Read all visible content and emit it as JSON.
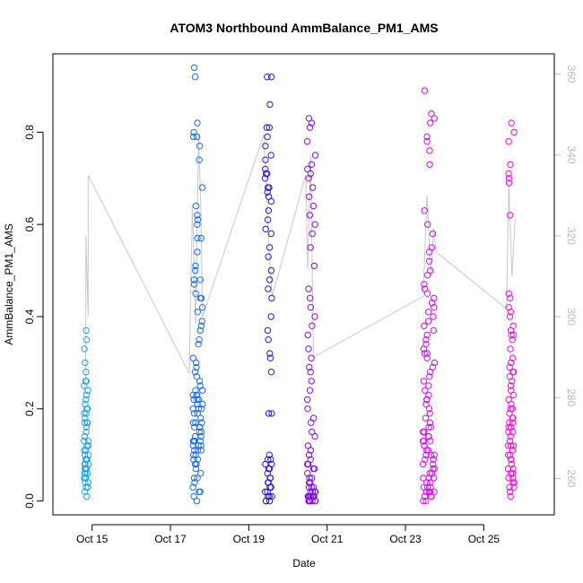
{
  "chart_data": {
    "type": "scatter",
    "title": "ATOM3 Northbound AmmBalance_PM1_AMS",
    "xlabel": "Date",
    "ylabel": "AmmBalance_PM1_AMS",
    "x_ticks": [
      "Oct 15",
      "Oct 17",
      "Oct 19",
      "Oct 21",
      "Oct 23",
      "Oct 25"
    ],
    "x_tick_days": [
      15,
      17,
      19,
      21,
      23,
      25
    ],
    "xlim_days": [
      14.0,
      26.8
    ],
    "y_ticks": [
      "0.0",
      "0.2",
      "0.4",
      "0.6",
      "0.8"
    ],
    "ylim": [
      -0.03,
      0.97
    ],
    "right_axis": {
      "ticks": [
        "260",
        "280",
        "300",
        "320",
        "340",
        "360"
      ],
      "ylim": [
        251,
        365
      ],
      "color": "#b8b8b8"
    },
    "grid": false,
    "point_style": "open circle",
    "point_colors": [
      "#1aa0f0",
      "#1a6cf0",
      "#3010e8",
      "#8010e8",
      "#d010ee",
      "#f010d8"
    ],
    "series": [
      {
        "clusters": [
          {
            "day": 14.85,
            "spread": 0.12,
            "color": "#1aa0f0",
            "values": [
              0.37,
              0.35,
              0.33,
              0.3,
              0.28,
              0.26,
              0.25,
              0.24,
              0.23,
              0.22,
              0.21,
              0.2,
              0.2,
              0.19,
              0.19,
              0.18,
              0.17,
              0.17,
              0.16,
              0.15,
              0.14,
              0.13,
              0.13,
              0.12,
              0.11,
              0.11,
              0.1,
              0.1,
              0.09,
              0.09,
              0.09,
              0.08,
              0.08,
              0.08,
              0.07,
              0.07,
              0.07,
              0.06,
              0.06,
              0.06,
              0.05,
              0.05,
              0.05,
              0.04,
              0.04,
              0.03,
              0.03,
              0.02,
              0.01,
              0.26,
              0.17,
              0.12
            ]
          },
          {
            "day": 17.7,
            "spread": 0.25,
            "color": "#1a6cf0",
            "values": [
              0.94,
              0.92,
              0.82,
              0.8,
              0.79,
              0.79,
              0.77,
              0.74,
              0.68,
              0.64,
              0.62,
              0.61,
              0.6,
              0.57,
              0.57,
              0.54,
              0.51,
              0.5,
              0.48,
              0.47,
              0.45,
              0.44,
              0.44,
              0.42,
              0.39,
              0.38,
              0.37,
              0.35,
              0.34,
              0.31,
              0.3,
              0.29,
              0.28,
              0.27,
              0.26,
              0.25,
              0.24,
              0.24,
              0.23,
              0.23,
              0.22,
              0.22,
              0.22,
              0.21,
              0.21,
              0.2,
              0.2,
              0.19,
              0.19,
              0.18,
              0.17,
              0.17,
              0.17,
              0.16,
              0.16,
              0.16,
              0.15,
              0.15,
              0.14,
              0.14,
              0.13,
              0.13,
              0.13,
              0.12,
              0.12,
              0.12,
              0.11,
              0.11,
              0.11,
              0.1,
              0.1,
              0.09,
              0.09,
              0.08,
              0.08,
              0.07,
              0.06,
              0.05,
              0.04,
              0.03,
              0.02,
              0.01,
              0.0,
              0.48,
              0.41,
              0.23,
              0.2,
              0.13,
              0.05,
              0.02
            ]
          },
          {
            "day": 19.5,
            "spread": 0.18,
            "color": "#3010e8",
            "values": [
              0.92,
              0.92,
              0.86,
              0.81,
              0.81,
              0.79,
              0.77,
              0.75,
              0.74,
              0.72,
              0.71,
              0.71,
              0.7,
              0.68,
              0.68,
              0.67,
              0.66,
              0.65,
              0.63,
              0.61,
              0.59,
              0.58,
              0.55,
              0.53,
              0.5,
              0.48,
              0.46,
              0.44,
              0.4,
              0.37,
              0.35,
              0.32,
              0.31,
              0.28,
              0.19,
              0.19,
              0.1,
              0.09,
              0.09,
              0.08,
              0.08,
              0.07,
              0.07,
              0.06,
              0.05,
              0.05,
              0.04,
              0.04,
              0.03,
              0.03,
              0.02,
              0.02,
              0.01,
              0.01,
              0.01,
              0.0,
              0.0,
              0.0
            ]
          },
          {
            "day": 20.6,
            "spread": 0.22,
            "color": "#8010e8",
            "values": [
              0.83,
              0.82,
              0.81,
              0.78,
              0.75,
              0.73,
              0.72,
              0.71,
              0.7,
              0.68,
              0.66,
              0.64,
              0.62,
              0.6,
              0.58,
              0.55,
              0.51,
              0.46,
              0.44,
              0.42,
              0.4,
              0.38,
              0.36,
              0.33,
              0.31,
              0.29,
              0.28,
              0.26,
              0.24,
              0.22,
              0.2,
              0.18,
              0.17,
              0.15,
              0.14,
              0.12,
              0.11,
              0.1,
              0.09,
              0.08,
              0.08,
              0.07,
              0.07,
              0.06,
              0.05,
              0.05,
              0.04,
              0.04,
              0.03,
              0.03,
              0.03,
              0.02,
              0.02,
              0.02,
              0.02,
              0.02,
              0.01,
              0.01,
              0.01,
              0.01,
              0.01,
              0.01,
              0.01,
              0.0,
              0.0,
              0.0,
              0.0,
              0.0,
              0.0,
              0.02,
              0.01,
              0.01,
              0.01,
              0.0
            ]
          },
          {
            "day": 23.6,
            "spread": 0.3,
            "color": "#d010ee",
            "values": [
              0.89,
              0.84,
              0.83,
              0.82,
              0.79,
              0.78,
              0.76,
              0.73,
              0.63,
              0.6,
              0.58,
              0.55,
              0.54,
              0.52,
              0.5,
              0.49,
              0.47,
              0.46,
              0.45,
              0.44,
              0.43,
              0.42,
              0.41,
              0.4,
              0.39,
              0.38,
              0.37,
              0.36,
              0.35,
              0.34,
              0.33,
              0.32,
              0.31,
              0.3,
              0.29,
              0.28,
              0.27,
              0.26,
              0.25,
              0.24,
              0.23,
              0.22,
              0.21,
              0.2,
              0.19,
              0.18,
              0.17,
              0.16,
              0.16,
              0.15,
              0.15,
              0.14,
              0.14,
              0.13,
              0.13,
              0.12,
              0.12,
              0.11,
              0.11,
              0.1,
              0.1,
              0.09,
              0.09,
              0.08,
              0.08,
              0.07,
              0.07,
              0.06,
              0.06,
              0.05,
              0.05,
              0.04,
              0.04,
              0.03,
              0.03,
              0.03,
              0.02,
              0.02,
              0.02,
              0.01,
              0.01,
              0.01,
              0.0,
              0.0,
              0.32,
              0.22,
              0.13,
              0.1,
              0.05,
              0.02
            ]
          },
          {
            "day": 25.7,
            "spread": 0.16,
            "color": "#f010d8",
            "values": [
              0.82,
              0.8,
              0.78,
              0.73,
              0.71,
              0.7,
              0.69,
              0.62,
              0.45,
              0.44,
              0.42,
              0.41,
              0.4,
              0.38,
              0.37,
              0.36,
              0.36,
              0.35,
              0.33,
              0.31,
              0.3,
              0.29,
              0.28,
              0.27,
              0.26,
              0.25,
              0.24,
              0.23,
              0.22,
              0.21,
              0.2,
              0.19,
              0.18,
              0.18,
              0.17,
              0.17,
              0.16,
              0.16,
              0.15,
              0.15,
              0.14,
              0.13,
              0.12,
              0.12,
              0.11,
              0.1,
              0.1,
              0.09,
              0.09,
              0.08,
              0.07,
              0.07,
              0.06,
              0.06,
              0.05,
              0.05,
              0.04,
              0.04,
              0.03,
              0.03,
              0.02,
              0.01,
              0.28,
              0.2,
              0.12
            ]
          }
        ]
      },
      {
        "axis": "right",
        "color": "#c8c8c8",
        "line_days": [
          14.78,
          14.84,
          14.84,
          14.9,
          14.9,
          17.48,
          17.56,
          17.64,
          17.72,
          17.78,
          17.82,
          19.38,
          19.46,
          19.54,
          19.6,
          20.45,
          20.5,
          20.58,
          20.65,
          23.45,
          23.55,
          23.65,
          23.72,
          23.78,
          25.58,
          25.64,
          25.72,
          25.8
        ],
        "line_values": [
          280,
          285,
          320,
          300,
          335,
          286,
          328,
          298,
          345,
          325,
          300,
          345,
          330,
          312,
          305,
          335,
          312,
          340,
          290,
          305,
          330,
          310,
          322,
          316,
          302,
          333,
          310,
          324
        ]
      }
    ]
  }
}
